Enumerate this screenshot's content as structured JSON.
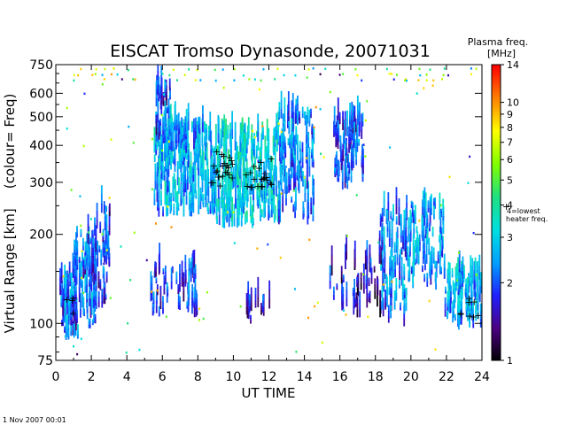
{
  "chart_data": {
    "type": "scatter",
    "title": "EISCAT Tromso Dynasonde,  20071031",
    "xlabel": "UT TIME",
    "ylabel_main": "Virtual Range [km]",
    "ylabel_sub": "(colour= Freq)",
    "x_ticks": [
      "0",
      "2",
      "4",
      "6",
      "8",
      "10",
      "12",
      "14",
      "16",
      "18",
      "20",
      "22",
      "24"
    ],
    "xlim": [
      0,
      24
    ],
    "y_scale": "log",
    "ylim": [
      75,
      750
    ],
    "y_ticks": [
      {
        "v": 750,
        "label": "750"
      },
      {
        "v": 600,
        "label": "600"
      },
      {
        "v": 500,
        "label": "500"
      },
      {
        "v": 400,
        "label": "400"
      },
      {
        "v": 300,
        "label": "300"
      },
      {
        "v": 200,
        "label": "200"
      },
      {
        "v": 100,
        "label": "100"
      },
      {
        "v": 75,
        "label": "75"
      }
    ],
    "colorbar": {
      "title_line1": "Plasma freq.",
      "title_line2": "[MHz]",
      "scale": "log",
      "range": [
        1,
        14
      ],
      "ticks": [
        {
          "v": 14,
          "label": "14"
        },
        {
          "v": 10,
          "label": "10"
        },
        {
          "v": 9,
          "label": "9"
        },
        {
          "v": 8,
          "label": "8"
        },
        {
          "v": 7,
          "label": "7"
        },
        {
          "v": 6,
          "label": "6"
        },
        {
          "v": 5,
          "label": "5"
        },
        {
          "v": 4,
          "label": "4"
        },
        {
          "v": 3,
          "label": "3"
        },
        {
          "v": 2,
          "label": "2"
        },
        {
          "v": 1,
          "label": "1"
        }
      ],
      "heater_marker_freq": 4,
      "heater_note_line1": "4=lowest",
      "heater_note_line2": "heater freq.",
      "colors": [
        "#000000",
        "#4b0082",
        "#2020ff",
        "#00a0ff",
        "#00e0e0",
        "#20e080",
        "#80ff00",
        "#ffff00",
        "#ff8000",
        "#ff0000"
      ]
    },
    "blobs": [
      {
        "t0": 0.2,
        "t1": 1.2,
        "h0": 88,
        "h1": 145,
        "f": 2.5,
        "n": 70
      },
      {
        "t0": 1.0,
        "t1": 2.3,
        "h0": 95,
        "h1": 200,
        "f": 2.4,
        "n": 90
      },
      {
        "t0": 2.0,
        "t1": 3.0,
        "h0": 110,
        "h1": 240,
        "f": 2.1,
        "n": 50
      },
      {
        "t0": 5.5,
        "t1": 9.0,
        "h0": 230,
        "h1": 420,
        "f": 3.1,
        "n": 230
      },
      {
        "t0": 9.0,
        "t1": 12.5,
        "h0": 210,
        "h1": 430,
        "f": 3.4,
        "n": 260
      },
      {
        "t0": 12.5,
        "t1": 14.5,
        "h0": 215,
        "h1": 500,
        "f": 2.6,
        "n": 140
      },
      {
        "t0": 5.6,
        "t1": 6.4,
        "h0": 400,
        "h1": 620,
        "f": 2.2,
        "n": 40
      },
      {
        "t0": 6.0,
        "t1": 8.5,
        "h0": 380,
        "h1": 460,
        "f": 2.9,
        "n": 50
      },
      {
        "t0": 5.2,
        "t1": 8.0,
        "h0": 105,
        "h1": 150,
        "f": 2.2,
        "n": 60
      },
      {
        "t0": 10.5,
        "t1": 12.0,
        "h0": 100,
        "h1": 115,
        "f": 1.8,
        "n": 15
      },
      {
        "t0": 15.6,
        "t1": 17.3,
        "h0": 280,
        "h1": 480,
        "f": 2.3,
        "n": 90
      },
      {
        "t0": 15.4,
        "t1": 18.6,
        "h0": 105,
        "h1": 165,
        "f": 1.8,
        "n": 50
      },
      {
        "t0": 18.2,
        "t1": 19.8,
        "h0": 95,
        "h1": 240,
        "f": 2.6,
        "n": 80
      },
      {
        "t0": 19.8,
        "t1": 21.8,
        "h0": 130,
        "h1": 250,
        "f": 2.8,
        "n": 90
      },
      {
        "t0": 21.8,
        "t1": 23.9,
        "h0": 95,
        "h1": 150,
        "f": 3.0,
        "n": 110
      }
    ],
    "heater_markers": [
      {
        "t0": 8.7,
        "t1": 10.0,
        "h0": 290,
        "h1": 380,
        "n": 24
      },
      {
        "t0": 10.6,
        "t1": 12.2,
        "h0": 270,
        "h1": 360,
        "n": 22
      },
      {
        "t0": 0.6,
        "t1": 1.2,
        "h0": 105,
        "h1": 130,
        "n": 4
      },
      {
        "t0": 22.6,
        "t1": 23.9,
        "h0": 100,
        "h1": 125,
        "n": 8
      }
    ],
    "noise_points": 190
  },
  "footer_timestamp": "1 Nov 2007 00:01"
}
